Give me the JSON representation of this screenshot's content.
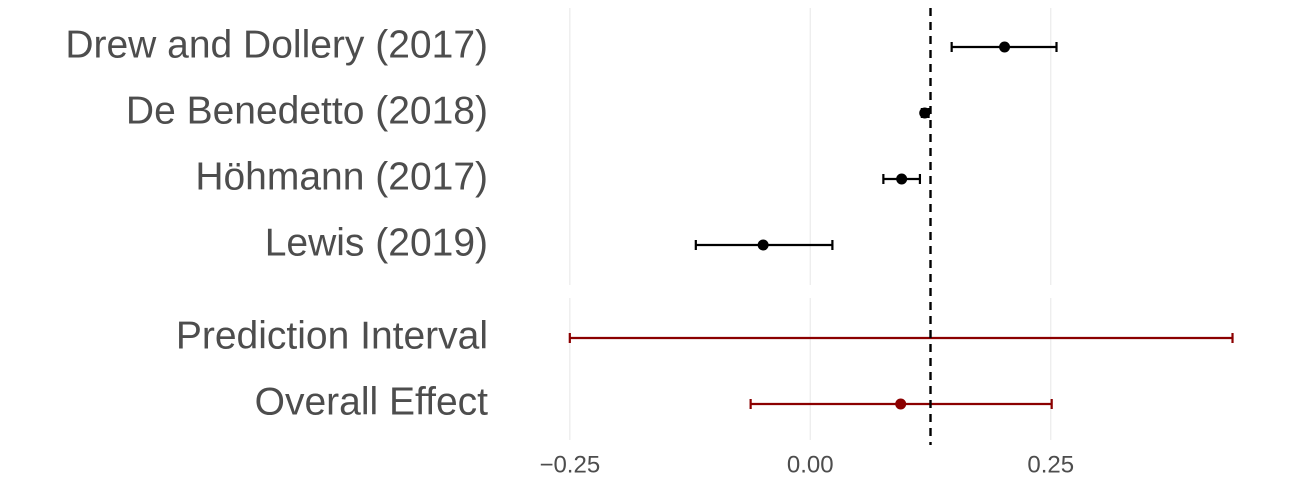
{
  "chart_data": {
    "type": "forest",
    "rows": [
      {
        "label": "Drew and Dollery (2017)",
        "estimate": 0.202,
        "lower": 0.147,
        "upper": 0.256,
        "color": "#000000"
      },
      {
        "label": "De Benedetto (2018)",
        "estimate": 0.119,
        "lower": 0.116,
        "upper": 0.123,
        "color": "#000000"
      },
      {
        "label": "Höhmann (2017)",
        "estimate": 0.095,
        "lower": 0.076,
        "upper": 0.114,
        "color": "#000000"
      },
      {
        "label": "Lewis (2019)",
        "estimate": -0.049,
        "lower": -0.119,
        "upper": 0.023,
        "color": "#000000"
      }
    ],
    "summary": [
      {
        "label": "Prediction Interval",
        "lower": -0.25,
        "upper": 0.439,
        "color": "#8b0000"
      },
      {
        "label": "Overall Effect",
        "estimate": 0.094,
        "lower": -0.062,
        "upper": 0.251,
        "color": "#8b0000"
      }
    ],
    "reference_line": 0.125,
    "xlim": [
      -0.255,
      0.505
    ],
    "xticks": [
      {
        "value": -0.25,
        "label": "−0.25"
      },
      {
        "value": 0,
        "label": "0.00"
      },
      0.25
    ],
    "grid": true
  }
}
